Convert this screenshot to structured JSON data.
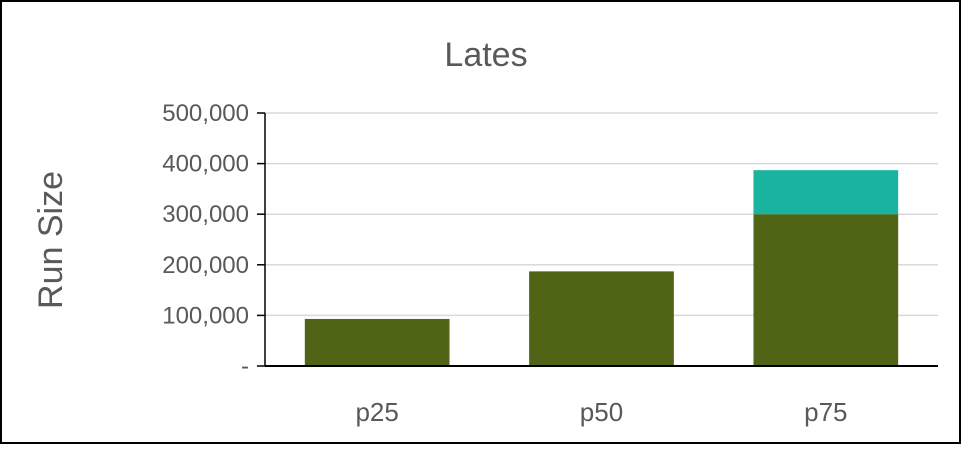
{
  "chart_data": {
    "type": "bar",
    "stacked": true,
    "title": "Lates",
    "xlabel": "",
    "ylabel": "Run Size",
    "categories": [
      "p25",
      "p50",
      "p75"
    ],
    "series": [
      {
        "values": [
          93000,
          187000,
          300000
        ],
        "color": "#4F6414"
      },
      {
        "values": [
          0,
          0,
          87000
        ],
        "color": "#1AB39F"
      }
    ],
    "ylim": [
      0,
      500000
    ],
    "yticks": [
      0,
      100000,
      200000,
      300000,
      400000,
      500000
    ],
    "ytick_labels": [
      "-",
      "100,000",
      "200,000",
      "300,000",
      "400,000",
      "500,000"
    ],
    "grid": true,
    "legend": "none"
  },
  "colors": {
    "gridline": "#d9d9d9",
    "axis": "#000000",
    "text": "#595959",
    "border": "#000000"
  }
}
